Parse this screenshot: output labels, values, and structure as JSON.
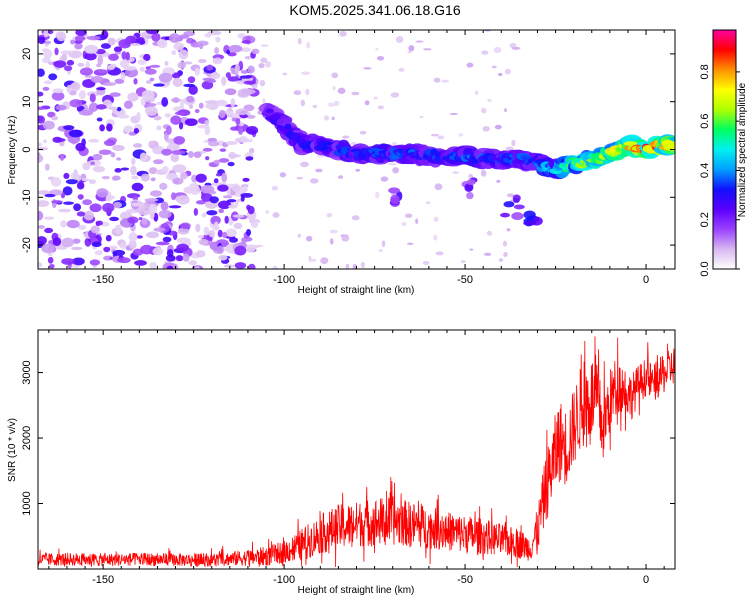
{
  "title": "KOM5.2025.341.06.18.G16",
  "colors": {
    "snr_line": "#ff0000",
    "frame": "#000000"
  },
  "chart_data": [
    {
      "type": "heatmap",
      "title": "KOM5.2025.341.06.18.G16",
      "xlabel": "Height of straight line (km)",
      "ylabel": "Frequency (Hz)",
      "xlim": [
        -168,
        8
      ],
      "ylim": [
        -25,
        25
      ],
      "xticks": [
        -150,
        -100,
        -50,
        0
      ],
      "yticks": [
        -20,
        -10,
        0,
        10,
        20
      ],
      "colorbar": {
        "label": "Normalized spectral amplitude",
        "range": [
          0.0,
          0.97
        ],
        "ticks": [
          0.0,
          0.2,
          0.4,
          0.6,
          0.8
        ],
        "tick_labels": [
          "0.0",
          "0.2",
          "0.4",
          "0.6",
          "0.8"
        ],
        "stops": [
          "#ffffff",
          "#d8b8f0",
          "#9a40ff",
          "#5a00ff",
          "#1010ff",
          "#00a0ff",
          "#00f0f0",
          "#00ff60",
          "#b0ff00",
          "#ffff00",
          "#ff9000",
          "#ff0000",
          "#ff00a0"
        ]
      },
      "noise_region": {
        "x": [
          -168,
          -108
        ],
        "freq_range": [
          -25,
          25
        ],
        "amplitude": [
          0.05,
          0.3
        ]
      },
      "ridge": [
        {
          "x": -105,
          "freq": 8,
          "amp": 0.25
        },
        {
          "x": -100,
          "freq": 5,
          "amp": 0.3
        },
        {
          "x": -95,
          "freq": 1,
          "amp": 0.3
        },
        {
          "x": -90,
          "freq": 1,
          "amp": 0.3
        },
        {
          "x": -85,
          "freq": 0,
          "amp": 0.32
        },
        {
          "x": -80,
          "freq": -1,
          "amp": 0.33
        },
        {
          "x": -75,
          "freq": -1,
          "amp": 0.34
        },
        {
          "x": -70,
          "freq": -1,
          "amp": 0.35
        },
        {
          "x": -65,
          "freq": -1,
          "amp": 0.33
        },
        {
          "x": -60,
          "freq": -1,
          "amp": 0.32
        },
        {
          "x": -55,
          "freq": -2,
          "amp": 0.33
        },
        {
          "x": -50,
          "freq": -1,
          "amp": 0.35
        },
        {
          "x": -45,
          "freq": -2,
          "amp": 0.33
        },
        {
          "x": -40,
          "freq": -2,
          "amp": 0.32
        },
        {
          "x": -35,
          "freq": -2,
          "amp": 0.32
        },
        {
          "x": -30,
          "freq": -3,
          "amp": 0.35
        },
        {
          "x": -25,
          "freq": -4,
          "amp": 0.45
        },
        {
          "x": -20,
          "freq": -3,
          "amp": 0.55
        },
        {
          "x": -15,
          "freq": -2,
          "amp": 0.6
        },
        {
          "x": -10,
          "freq": -1,
          "amp": 0.65
        },
        {
          "x": -5,
          "freq": 1,
          "amp": 0.7
        },
        {
          "x": 0,
          "freq": 0,
          "amp": 0.85
        },
        {
          "x": 5,
          "freq": 1,
          "amp": 0.75
        },
        {
          "x": 8,
          "freq": 1,
          "amp": 0.7
        }
      ],
      "secondary_blobs": [
        {
          "x": -68,
          "freq": -10,
          "amp": 0.25
        },
        {
          "x": -48,
          "freq": -8,
          "amp": 0.25
        },
        {
          "x": -37,
          "freq": -12,
          "amp": 0.3
        },
        {
          "x": -31,
          "freq": -14,
          "amp": 0.35
        }
      ]
    },
    {
      "type": "line",
      "xlabel": "Height of straight line (km)",
      "ylabel": "SNR (10 * v/v)",
      "xlim": [
        -168,
        8
      ],
      "ylim": [
        0,
        3650
      ],
      "xticks": [
        -150,
        -100,
        -50,
        0
      ],
      "yticks": [
        1000,
        2000,
        3000
      ],
      "series": [
        {
          "name": "SNR",
          "x": [
            -168,
            -160,
            -150,
            -140,
            -130,
            -120,
            -110,
            -105,
            -100,
            -95,
            -90,
            -85,
            -80,
            -75,
            -70,
            -65,
            -60,
            -55,
            -50,
            -45,
            -40,
            -35,
            -32,
            -30,
            -28,
            -26,
            -24,
            -22,
            -20,
            -18,
            -16,
            -14,
            -12,
            -10,
            -8,
            -6,
            -4,
            -2,
            0,
            2,
            4,
            6,
            8
          ],
          "values": [
            130,
            140,
            130,
            140,
            130,
            130,
            160,
            180,
            240,
            350,
            500,
            600,
            650,
            680,
            700,
            650,
            600,
            550,
            500,
            470,
            420,
            360,
            300,
            550,
            1100,
            1500,
            1900,
            1800,
            2100,
            2400,
            2500,
            2600,
            2100,
            2500,
            2800,
            2700,
            2600,
            2800,
            2900,
            2800,
            2900,
            3000,
            3100
          ],
          "spread": [
            200,
            200,
            200,
            200,
            200,
            200,
            250,
            300,
            350,
            500,
            600,
            700,
            700,
            750,
            750,
            700,
            650,
            600,
            600,
            550,
            500,
            450,
            400,
            700,
            1000,
            1200,
            1300,
            1200,
            1200,
            1300,
            1300,
            1300,
            1100,
            1000,
            900,
            800,
            700,
            600,
            600,
            600,
            600,
            600,
            600
          ]
        }
      ]
    }
  ]
}
